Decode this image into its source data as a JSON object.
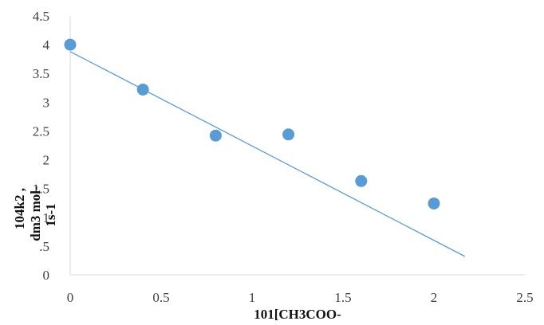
{
  "chart_data": {
    "type": "scatter",
    "x": [
      0,
      0.4,
      0.8,
      1.2,
      1.6,
      2.0
    ],
    "y": [
      4.0,
      3.22,
      2.42,
      2.44,
      1.63,
      1.24
    ],
    "trendline": {
      "type": "linear",
      "x": [
        0,
        2.17
      ],
      "y": [
        3.88,
        0.32
      ],
      "color": "#5b9bd5"
    },
    "marker_color": "#5b9bd5",
    "xlim": [
      0,
      2.5
    ],
    "ylim": [
      0,
      4.5
    ],
    "x_tick_labels": [
      "0",
      "0.5",
      "1",
      "1.5",
      "2",
      "2.5"
    ],
    "y_tick_labels": [
      "0",
      ".5",
      "1",
      "1.5",
      "2",
      "2.5",
      "3",
      "3.5",
      "4",
      "4.5"
    ],
    "xlabel": "101[CH3COO-",
    "ylabel_lines": [
      "104k2 ,",
      "dm3 mol-",
      "1s-1"
    ],
    "grid": false
  }
}
